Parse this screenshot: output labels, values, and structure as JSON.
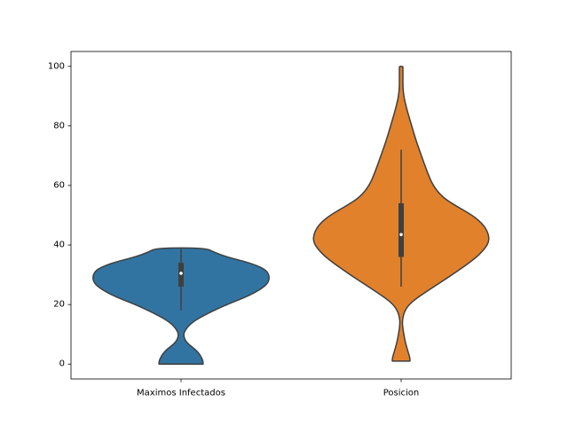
{
  "chart_data": {
    "type": "violin",
    "title": "",
    "xlabel": "",
    "ylabel": "",
    "ylim": [
      -5,
      105
    ],
    "yticks": [
      0,
      20,
      40,
      60,
      80,
      100
    ],
    "ytick_labels": [
      "0",
      "20",
      "40",
      "60",
      "80",
      "100"
    ],
    "grid": false,
    "categories": [
      "Maximos Infectados",
      "Posicion"
    ],
    "series": [
      {
        "category": "Maximos Infectados",
        "color": "#3274a1",
        "min": 0,
        "max": 39,
        "q1": 26,
        "median": 30.5,
        "q3": 34,
        "whisker_low": 18,
        "whisker_high": 39,
        "density_profile": [
          [
            0,
            0.25
          ],
          [
            1,
            0.25
          ],
          [
            3,
            0.22
          ],
          [
            5,
            0.16
          ],
          [
            7,
            0.07
          ],
          [
            9,
            0.03
          ],
          [
            11,
            0.035
          ],
          [
            14,
            0.12
          ],
          [
            17,
            0.3
          ],
          [
            20,
            0.52
          ],
          [
            23,
            0.78
          ],
          [
            26,
            0.95
          ],
          [
            28,
            1.0
          ],
          [
            30,
            1.0
          ],
          [
            32,
            0.95
          ],
          [
            34,
            0.78
          ],
          [
            36,
            0.52
          ],
          [
            37.5,
            0.38
          ],
          [
            39,
            0.28
          ]
        ]
      },
      {
        "category": "Posicion",
        "color": "#e1812c",
        "min": 1,
        "max": 100,
        "q1": 36,
        "median": 43.5,
        "q3": 54,
        "whisker_low": 26,
        "whisker_high": 72,
        "density_profile": [
          [
            1,
            0.1
          ],
          [
            2,
            0.1
          ],
          [
            4,
            0.08
          ],
          [
            7,
            0.05
          ],
          [
            10,
            0.03
          ],
          [
            13,
            0.015
          ],
          [
            15,
            0.015
          ],
          [
            18,
            0.04
          ],
          [
            21,
            0.12
          ],
          [
            25,
            0.32
          ],
          [
            30,
            0.58
          ],
          [
            35,
            0.82
          ],
          [
            38,
            0.93
          ],
          [
            41,
            1.0
          ],
          [
            44,
            0.99
          ],
          [
            47,
            0.93
          ],
          [
            50,
            0.81
          ],
          [
            53,
            0.63
          ],
          [
            56,
            0.47
          ],
          [
            60,
            0.36
          ],
          [
            65,
            0.29
          ],
          [
            70,
            0.23
          ],
          [
            75,
            0.17
          ],
          [
            80,
            0.12
          ],
          [
            85,
            0.07
          ],
          [
            88,
            0.045
          ],
          [
            90,
            0.03
          ],
          [
            93,
            0.02
          ],
          [
            96,
            0.02
          ],
          [
            98,
            0.02
          ],
          [
            99.5,
            0.02
          ],
          [
            100,
            0.02
          ]
        ]
      }
    ]
  }
}
